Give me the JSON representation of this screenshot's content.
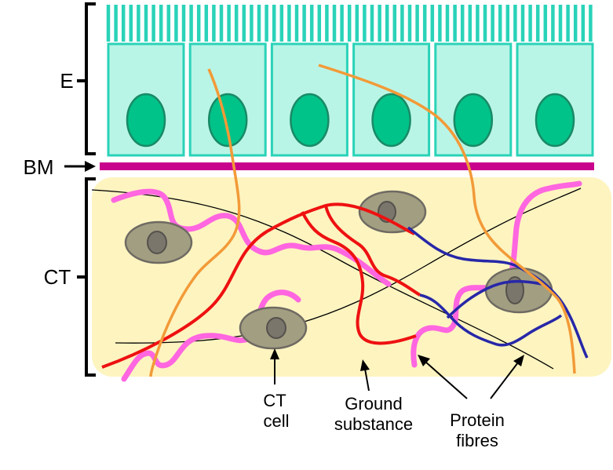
{
  "labels": {
    "epithelium": "E",
    "basement_membrane": "BM",
    "connective_tissue": "CT",
    "ct_cell_line1": "CT",
    "ct_cell_line2": "cell",
    "ground_line1": "Ground",
    "ground_line2": "substance",
    "protein_line1": "Protein",
    "protein_line2": "fibres"
  },
  "colors": {
    "cell_fill": "#b9f5e6",
    "cell_stroke": "#2ad3b8",
    "nucleus_fill": "#00c389",
    "nucleus_stroke": "#1a8a66",
    "microvilli": "#2ad3b8",
    "basement_membrane": "#c8048c",
    "ct_background": "#fdf4c0",
    "ct_cell_fill": "#a29e82",
    "ct_nucleus": "#6e6a62",
    "fibre_orange": "#f29a38",
    "fibre_pink": "#ff66e0",
    "fibre_red": "#ee1111",
    "fibre_blue": "#2727a8",
    "fibre_thin": "#000000"
  }
}
